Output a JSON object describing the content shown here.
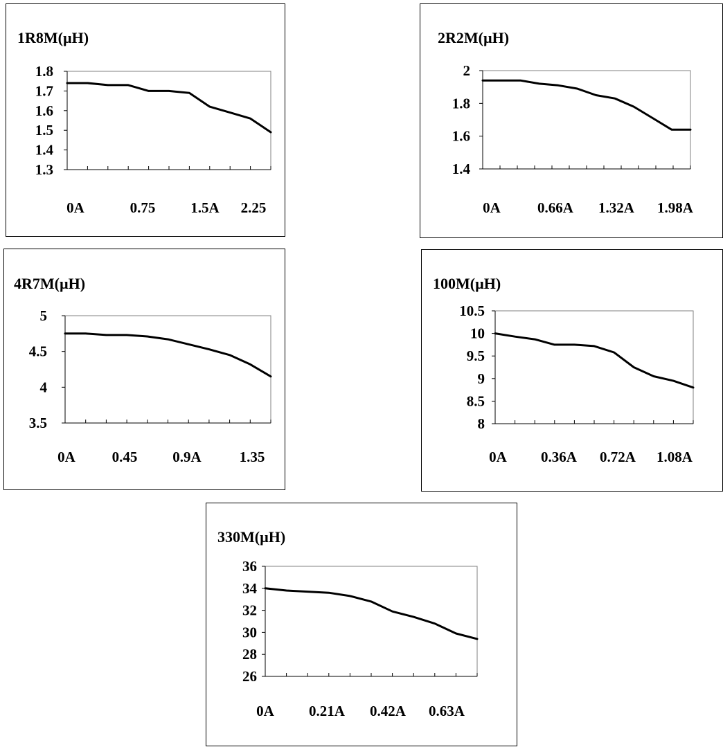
{
  "chart_data": [
    {
      "type": "line",
      "title": "1R8M(µH)",
      "ylim": [
        1.3,
        1.8
      ],
      "yticks": [
        "1.8",
        "1.7",
        "1.6",
        "1.5",
        "1.4",
        "1.3"
      ],
      "xtick_labels": [
        "0A",
        "0.75",
        "1.5A",
        "2.25"
      ],
      "x_label_positions": [
        0,
        3,
        6,
        9
      ],
      "tick_count": 10,
      "grid": false,
      "series": [
        {
          "x": [
            0,
            0.25,
            0.5,
            0.75,
            1,
            1.25,
            1.5,
            1.75,
            2,
            2.25,
            2.5
          ],
          "values": [
            1.74,
            1.74,
            1.73,
            1.73,
            1.7,
            1.7,
            1.69,
            1.62,
            1.59,
            1.56,
            1.49
          ]
        }
      ]
    },
    {
      "type": "line",
      "title": "2R2M(µH)",
      "ylim": [
        1.4,
        2.0
      ],
      "yticks": [
        "2",
        "1.8",
        "1.6",
        "1.4"
      ],
      "xtick_labels": [
        "0A",
        "0.66A",
        "1.32A",
        "1.98A"
      ],
      "x_label_positions": [
        0,
        3,
        6,
        9
      ],
      "tick_count": 12,
      "grid": false,
      "series": [
        {
          "x": [
            0,
            0.22,
            0.44,
            0.66,
            0.88,
            1.1,
            1.32,
            1.54,
            1.76,
            1.98,
            2.2,
            2.42
          ],
          "values": [
            1.94,
            1.94,
            1.94,
            1.92,
            1.91,
            1.89,
            1.85,
            1.83,
            1.78,
            1.71,
            1.64,
            1.64
          ]
        }
      ]
    },
    {
      "type": "line",
      "title": "4R7M(µH)",
      "ylim": [
        3.5,
        5.0
      ],
      "yticks": [
        "5",
        "4.5",
        "4",
        "3.5"
      ],
      "xtick_labels": [
        "0A",
        "0.45",
        "0.9A",
        "1.35"
      ],
      "x_label_positions": [
        0,
        3,
        6,
        9
      ],
      "tick_count": 10,
      "grid": false,
      "series": [
        {
          "x": [
            0,
            0.15,
            0.3,
            0.45,
            0.6,
            0.75,
            0.9,
            1.05,
            1.2,
            1.35,
            1.5
          ],
          "values": [
            4.75,
            4.75,
            4.73,
            4.73,
            4.71,
            4.67,
            4.6,
            4.53,
            4.45,
            4.32,
            4.15
          ]
        }
      ]
    },
    {
      "type": "line",
      "title": "100M(µH)",
      "ylim": [
        8,
        10.5
      ],
      "yticks": [
        "10.5",
        "10",
        "9.5",
        "9",
        "8.5",
        "8"
      ],
      "xtick_labels": [
        "0A",
        "0.36A",
        "0.72A",
        "1.08A"
      ],
      "x_label_positions": [
        0,
        3,
        6,
        9
      ],
      "tick_count": 10,
      "grid": false,
      "series": [
        {
          "x": [
            0,
            0.12,
            0.24,
            0.36,
            0.48,
            0.6,
            0.72,
            0.84,
            0.96,
            1.08,
            1.2
          ],
          "values": [
            10.0,
            9.93,
            9.87,
            9.75,
            9.75,
            9.72,
            9.58,
            9.25,
            9.05,
            8.95,
            8.8
          ]
        }
      ]
    },
    {
      "type": "line",
      "title": "330M(µH)",
      "ylim": [
        26,
        36
      ],
      "yticks": [
        "36",
        "34",
        "32",
        "30",
        "28",
        "26"
      ],
      "xtick_labels": [
        "0A",
        "0.21A",
        "0.42A",
        "0.63A"
      ],
      "x_label_positions": [
        0,
        3,
        6,
        9
      ],
      "tick_count": 10,
      "grid": false,
      "series": [
        {
          "x": [
            0,
            0.07,
            0.14,
            0.21,
            0.28,
            0.35,
            0.42,
            0.49,
            0.56,
            0.63,
            0.7
          ],
          "values": [
            34.0,
            33.8,
            33.7,
            33.6,
            33.3,
            32.8,
            31.9,
            31.4,
            30.8,
            29.9,
            29.4
          ]
        }
      ]
    }
  ]
}
